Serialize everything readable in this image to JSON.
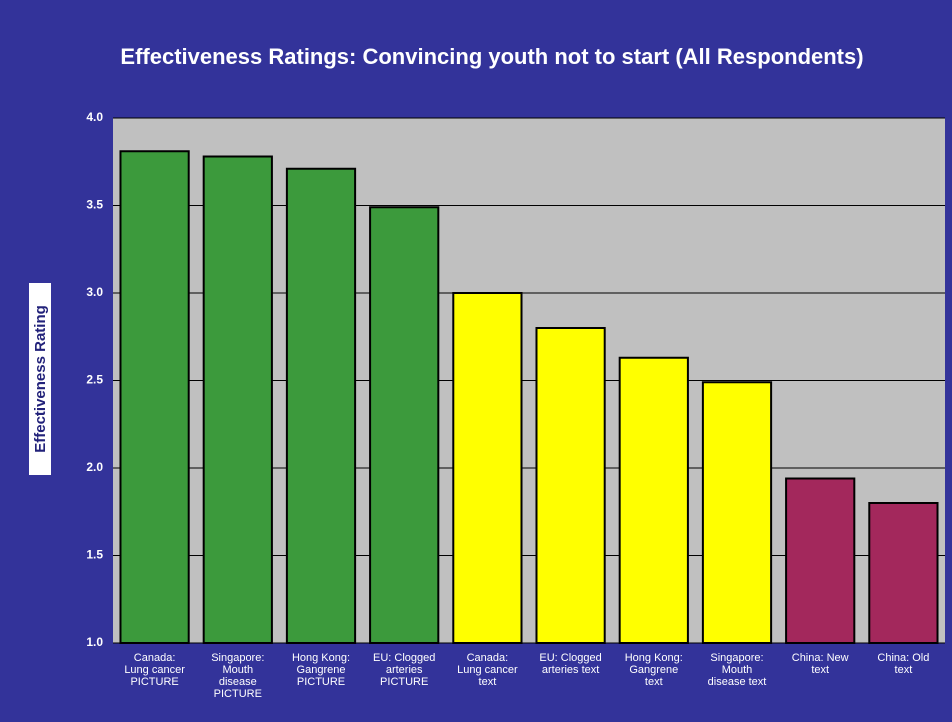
{
  "chart_data": {
    "type": "bar",
    "title": "Effectiveness Ratings: Convincing youth not to start  (All Respondents)",
    "y_label": "Effectiveness Rating",
    "categories": [
      "Canada:\nLung cancer\nPICTURE",
      "Singapore:\nMouth\ndisease\nPICTURE",
      "Hong Kong:\nGangrene\nPICTURE",
      "EU: Clogged\narteries\nPICTURE",
      "Canada:\nLung cancer\ntext",
      "EU: Clogged\narteries text",
      "Hong Kong:\nGangrene\ntext",
      "Singapore:\nMouth\ndisease text",
      "China: New\ntext",
      "China: Old\ntext"
    ],
    "values": [
      3.81,
      3.78,
      3.71,
      3.49,
      3.0,
      2.8,
      2.63,
      2.49,
      1.94,
      1.8
    ],
    "colors": [
      "#3c9a3c",
      "#3c9a3c",
      "#3c9a3c",
      "#3c9a3c",
      "#ffff00",
      "#ffff00",
      "#ffff00",
      "#ffff00",
      "#a3285c",
      "#a3285c"
    ],
    "ylim": [
      1,
      4
    ],
    "yticks": [
      {
        "value": 1,
        "label": "1.0"
      },
      {
        "value": 1.5,
        "label": "1.5"
      },
      {
        "value": 2,
        "label": "2.0"
      },
      {
        "value": 2.5,
        "label": "2.5"
      },
      {
        "value": 3,
        "label": "3.0"
      },
      {
        "value": 3.5,
        "label": "3.5"
      },
      {
        "value": 4,
        "label": "4.0"
      }
    ],
    "grid": true
  }
}
